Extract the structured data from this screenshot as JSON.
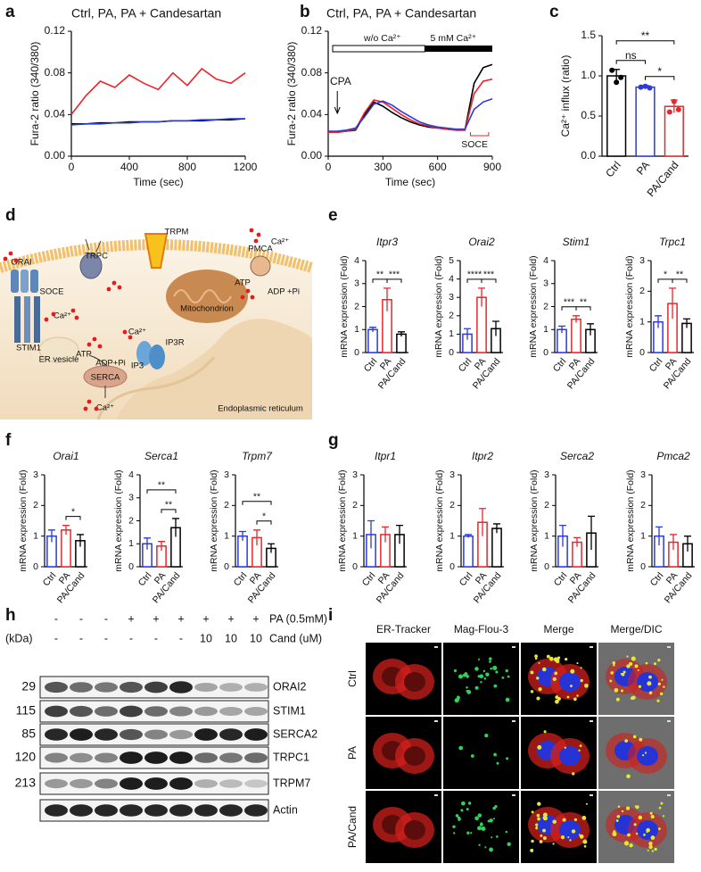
{
  "panel_labels": [
    "a",
    "b",
    "c",
    "d",
    "e",
    "f",
    "g",
    "h",
    "i"
  ],
  "chart_data": [
    {
      "type": "line",
      "xlabel": "Time (sec)",
      "ylabel": "Fura-2 ratio (340/380)",
      "x": [
        0,
        100,
        200,
        300,
        400,
        500,
        600,
        700,
        800,
        900,
        1000,
        1100,
        1200
      ],
      "series": [
        {
          "name": "Ctrl,",
          "color": "#000000",
          "values": [
            0.031,
            0.031,
            0.032,
            0.032,
            0.033,
            0.033,
            0.033,
            0.034,
            0.034,
            0.034,
            0.035,
            0.035,
            0.036
          ]
        },
        {
          "name": "PA,",
          "color": "#e8262b",
          "values": [
            0.04,
            0.058,
            0.072,
            0.066,
            0.078,
            0.07,
            0.064,
            0.08,
            0.068,
            0.084,
            0.074,
            0.07,
            0.08
          ]
        },
        {
          "name": "PA + Candesartan",
          "color": "#2a3bd6",
          "values": [
            0.03,
            0.031,
            0.031,
            0.032,
            0.032,
            0.033,
            0.033,
            0.034,
            0.034,
            0.035,
            0.035,
            0.036,
            0.036
          ]
        }
      ],
      "xlim": [
        0,
        1200
      ],
      "xticks": [
        0,
        400,
        800,
        1200
      ],
      "ylim": [
        0,
        0.12
      ],
      "yticks": [
        {
          "value": 0,
          "label": "0.00"
        },
        0.04,
        0.08,
        0.12
      ]
    },
    {
      "type": "line",
      "xlabel": "Time (sec)",
      "ylabel": "Fura-2 ratio (340/380)",
      "x": [
        0,
        50,
        100,
        150,
        200,
        250,
        300,
        350,
        400,
        450,
        500,
        550,
        600,
        650,
        700,
        750,
        800,
        850,
        900
      ],
      "series": [
        {
          "name": "Ctrl,",
          "color": "#000000",
          "values": [
            0.023,
            0.023,
            0.024,
            0.025,
            0.04,
            0.052,
            0.048,
            0.042,
            0.037,
            0.033,
            0.03,
            0.028,
            0.027,
            0.026,
            0.025,
            0.025,
            0.07,
            0.085,
            0.088
          ]
        },
        {
          "name": "PA,",
          "color": "#e8262b",
          "values": [
            0.023,
            0.023,
            0.024,
            0.026,
            0.042,
            0.054,
            0.052,
            0.046,
            0.04,
            0.035,
            0.031,
            0.029,
            0.027,
            0.026,
            0.025,
            0.025,
            0.06,
            0.072,
            0.074
          ]
        },
        {
          "name": "PA + Candesartan",
          "color": "#2a3bd6",
          "values": [
            0.024,
            0.024,
            0.025,
            0.027,
            0.038,
            0.05,
            0.053,
            0.049,
            0.043,
            0.038,
            0.033,
            0.03,
            0.028,
            0.027,
            0.026,
            0.026,
            0.045,
            0.052,
            0.055
          ]
        }
      ],
      "annotations": [
        "CPA",
        "w/o Ca²⁺",
        "5 mM Ca²⁺",
        "SOCE"
      ],
      "xlim": [
        0,
        900
      ],
      "xticks": [
        0,
        300,
        600,
        900
      ],
      "ylim": [
        0,
        0.12
      ],
      "yticks": [
        {
          "value": 0,
          "label": "0.00"
        },
        0.04,
        0.08,
        0.12
      ]
    },
    {
      "type": "bar",
      "ylabel": "Ca²⁺ influx (ratio)",
      "categories": [
        "Ctrl",
        "PA",
        "PA/Cand"
      ],
      "values": [
        1.0,
        0.86,
        0.62
      ],
      "errors": [
        0.08,
        0.02,
        0.08
      ],
      "points": [
        [
          1.07,
          0.92,
          0.98
        ],
        [
          0.86,
          0.87,
          0.85
        ],
        [
          0.55,
          0.68,
          0.58
        ]
      ],
      "colors": [
        "#000000",
        "#2a3bd6",
        "#e8262b"
      ],
      "ylim": [
        0,
        1.5
      ],
      "yticks": [
        {
          "value": 0,
          "label": "0.0"
        },
        0.5,
        {
          "value": 1,
          "label": "1.0"
        },
        1.5
      ],
      "significance": [
        {
          "label": "ns",
          "pair": [
            "Ctrl",
            "PA"
          ]
        },
        {
          "label": "*",
          "pair": [
            "PA",
            "PA/Cand"
          ]
        },
        {
          "label": "**",
          "pair": [
            "Ctrl",
            "PA/Cand"
          ]
        }
      ]
    },
    {
      "type": "bar",
      "title": "Itpr3",
      "ylabel": "mRNA expression (Fold)",
      "categories": [
        "Ctrl",
        "PA",
        "PA/Cand"
      ],
      "values": [
        1.0,
        2.3,
        0.8
      ],
      "errors": [
        0.1,
        0.5,
        0.1
      ],
      "colors": [
        "#2a3bd6",
        "#e8262b",
        "#000000"
      ],
      "ylim": [
        0,
        4
      ],
      "yticks": [
        0,
        1,
        2,
        3,
        4
      ],
      "significance": [
        {
          "label": "**",
          "pair": [
            "Ctrl",
            "PA"
          ]
        },
        {
          "label": "***",
          "pair": [
            "PA",
            "PA/Cand"
          ]
        }
      ]
    },
    {
      "type": "bar",
      "title": "Orai2",
      "ylabel": "mRNA expression (Fold)",
      "categories": [
        "Ctrl",
        "PA",
        "PA/Cand"
      ],
      "values": [
        1.0,
        3.0,
        1.3
      ],
      "errors": [
        0.3,
        0.5,
        0.4
      ],
      "colors": [
        "#2a3bd6",
        "#e8262b",
        "#000000"
      ],
      "ylim": [
        0,
        5
      ],
      "yticks": [
        0,
        1,
        2,
        3,
        4,
        5
      ],
      "significance": [
        {
          "label": "****",
          "pair": [
            "Ctrl",
            "PA"
          ]
        },
        {
          "label": "***",
          "pair": [
            "PA",
            "PA/Cand"
          ]
        }
      ]
    },
    {
      "type": "bar",
      "title": "Stim1",
      "ylabel": "mRNA expression (Fold)",
      "categories": [
        "Ctrl",
        "PA",
        "PA/Cand"
      ],
      "values": [
        1.0,
        1.45,
        1.0
      ],
      "errors": [
        0.15,
        0.15,
        0.25
      ],
      "colors": [
        "#2a3bd6",
        "#e8262b",
        "#000000"
      ],
      "ylim": [
        0,
        4
      ],
      "yticks": [
        0,
        1,
        2,
        3,
        4
      ],
      "significance": [
        {
          "label": "***",
          "pair": [
            "Ctrl",
            "PA"
          ]
        },
        {
          "label": "**",
          "pair": [
            "PA",
            "PA/Cand"
          ]
        }
      ]
    },
    {
      "type": "bar",
      "title": "Trpc1",
      "ylabel": "mRNA expression (Fold)",
      "categories": [
        "Ctrl",
        "PA",
        "PA/Cand"
      ],
      "values": [
        1.0,
        1.6,
        0.95
      ],
      "errors": [
        0.2,
        0.5,
        0.15
      ],
      "colors": [
        "#2a3bd6",
        "#e8262b",
        "#000000"
      ],
      "ylim": [
        0,
        3
      ],
      "yticks": [
        0,
        1,
        2,
        3
      ],
      "significance": [
        {
          "label": "*",
          "pair": [
            "Ctrl",
            "PA"
          ]
        },
        {
          "label": "**",
          "pair": [
            "PA",
            "PA/Cand"
          ]
        }
      ]
    },
    {
      "type": "bar",
      "title": "Orai1",
      "ylabel": "mRNA expression (Fold)",
      "categories": [
        "Ctrl",
        "PA",
        "PA/Cand"
      ],
      "values": [
        1.0,
        1.2,
        0.85
      ],
      "errors": [
        0.2,
        0.15,
        0.2
      ],
      "colors": [
        "#2a3bd6",
        "#e8262b",
        "#000000"
      ],
      "ylim": [
        0,
        3
      ],
      "yticks": [
        0,
        1,
        2,
        3
      ],
      "significance": [
        {
          "label": "*",
          "pair": [
            "PA",
            "PA/Cand"
          ]
        }
      ]
    },
    {
      "type": "bar",
      "title": "Serca1",
      "ylabel": "mRNA expression (Fold)",
      "categories": [
        "Ctrl",
        "PA",
        "PA/Cand"
      ],
      "values": [
        1.0,
        0.9,
        1.7
      ],
      "errors": [
        0.25,
        0.2,
        0.4
      ],
      "colors": [
        "#2a3bd6",
        "#e8262b",
        "#000000"
      ],
      "ylim": [
        0,
        4
      ],
      "yticks": [
        0,
        1,
        2,
        3,
        4
      ],
      "significance": [
        {
          "label": "**",
          "pair": [
            "Ctrl",
            "PA/Cand"
          ]
        },
        {
          "label": "**",
          "pair": [
            "PA",
            "PA/Cand"
          ]
        }
      ]
    },
    {
      "type": "bar",
      "title": "Trpm7",
      "ylabel": "mRNA expression (Fold)",
      "categories": [
        "Ctrl",
        "PA",
        "PA/Cand"
      ],
      "values": [
        1.0,
        0.95,
        0.6
      ],
      "errors": [
        0.15,
        0.25,
        0.15
      ],
      "colors": [
        "#2a3bd6",
        "#e8262b",
        "#000000"
      ],
      "ylim": [
        0,
        3
      ],
      "yticks": [
        0,
        1,
        2,
        3
      ],
      "significance": [
        {
          "label": "**",
          "pair": [
            "Ctrl",
            "PA/Cand"
          ]
        },
        {
          "label": "*",
          "pair": [
            "PA",
            "PA/Cand"
          ]
        }
      ]
    },
    {
      "type": "bar",
      "title": "Itpr1",
      "ylabel": "mRNA expression (Fold)",
      "categories": [
        "Ctrl",
        "PA",
        "PA/Cand"
      ],
      "values": [
        1.05,
        1.05,
        1.05
      ],
      "errors": [
        0.45,
        0.25,
        0.3
      ],
      "colors": [
        "#2a3bd6",
        "#e8262b",
        "#000000"
      ],
      "ylim": [
        0,
        3
      ],
      "yticks": [
        0,
        1,
        2,
        3
      ]
    },
    {
      "type": "bar",
      "title": "Itpr2",
      "ylabel": "mRNA expression (Fold)",
      "categories": [
        "Ctrl",
        "PA",
        "PA/Cand"
      ],
      "values": [
        1.0,
        1.45,
        1.25
      ],
      "errors": [
        0.05,
        0.45,
        0.15
      ],
      "colors": [
        "#2a3bd6",
        "#e8262b",
        "#000000"
      ],
      "ylim": [
        0,
        3
      ],
      "yticks": [
        0,
        1,
        2,
        3
      ]
    },
    {
      "type": "bar",
      "title": "Serca2",
      "ylabel": "mRNA expression (Fold)",
      "categories": [
        "Ctrl",
        "PA",
        "PA/Cand"
      ],
      "values": [
        1.0,
        0.8,
        1.1
      ],
      "errors": [
        0.35,
        0.15,
        0.55
      ],
      "colors": [
        "#2a3bd6",
        "#e8262b",
        "#000000"
      ],
      "ylim": [
        0,
        3
      ],
      "yticks": [
        0,
        1,
        2,
        3
      ]
    },
    {
      "type": "bar",
      "title": "Pmca2",
      "ylabel": "mRNA expression (Fold)",
      "categories": [
        "Ctrl",
        "PA",
        "PA/Cand"
      ],
      "values": [
        1.0,
        0.8,
        0.75
      ],
      "errors": [
        0.3,
        0.25,
        0.25
      ],
      "colors": [
        "#2a3bd6",
        "#e8262b",
        "#000000"
      ],
      "ylim": [
        0,
        3
      ],
      "yticks": [
        0,
        1,
        2,
        3
      ]
    }
  ],
  "diagram": {
    "labels": [
      "TRPC",
      "TRPM",
      "PMCA",
      "Ca²⁺",
      "ORAI",
      "SOCE",
      "Ca²⁺",
      "Mitochondrion",
      "ATP",
      "ADP +Pi",
      "STIM1",
      "ER vesicle",
      "Ca²⁺",
      "IP3R",
      "ATP",
      "ADP+Pi",
      "IP3",
      "SERCA",
      "Ca²⁺",
      "Endoplasmic reticulum"
    ]
  },
  "western_blot": {
    "unit": "(kDa)",
    "pa_row": {
      "label": "PA (0.5mM)",
      "marks": [
        "-",
        "-",
        "-",
        "+",
        "+",
        "+",
        "+",
        "+",
        "+"
      ]
    },
    "cand_row": {
      "label": "Cand (uM)",
      "marks": [
        "-",
        "-",
        "-",
        "-",
        "-",
        "-",
        "10",
        "10",
        "10"
      ]
    },
    "bands": [
      {
        "kda": 29,
        "protein": "ORAI2"
      },
      {
        "kda": 115,
        "protein": "STIM1"
      },
      {
        "kda": 85,
        "protein": "SERCA2"
      },
      {
        "kda": 120,
        "protein": "TRPC1"
      },
      {
        "kda": 213,
        "protein": "TRPM7"
      },
      {
        "protein": "Actin"
      }
    ]
  },
  "microscopy": {
    "columns": [
      "ER-Tracker",
      "Mag-Flou-3",
      "Merge",
      "Merge/DIC"
    ],
    "rows": [
      "Ctrl",
      "PA",
      "PA/Cand"
    ]
  }
}
